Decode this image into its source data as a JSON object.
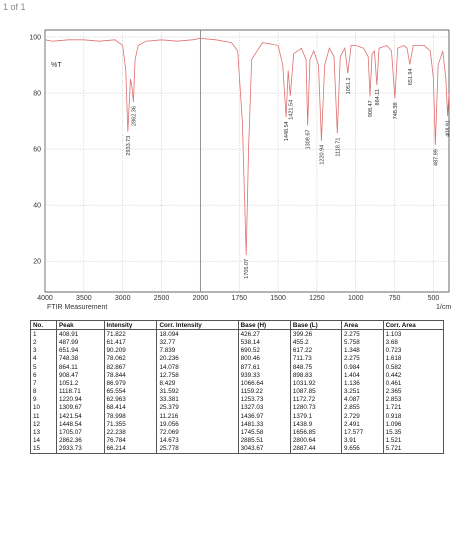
{
  "page": {
    "counter": "1 of 1"
  },
  "chart_data": {
    "type": "line",
    "y_label": "%T",
    "x_label": "1/cm",
    "caption": "FTIR Measurement",
    "color": "#e07070",
    "label_color": "#d03030",
    "grid": true,
    "scale_break": 2000,
    "xlim": [
      4000,
      400
    ],
    "ylim": [
      9,
      102.5
    ],
    "xticks": [
      4000,
      3500,
      3000,
      2500,
      2000,
      1750,
      1500,
      1250,
      1000,
      750,
      500
    ],
    "yticks": [
      20,
      40,
      60,
      80,
      100
    ],
    "x": [
      4000,
      3900,
      3700,
      3500,
      3300,
      3100,
      3000,
      2960,
      2933.73,
      2900,
      2880,
      2862.36,
      2840,
      2800,
      2700,
      2500,
      2300,
      2100,
      2000,
      1900,
      1800,
      1760,
      1730,
      1705.07,
      1690,
      1670,
      1600,
      1500,
      1470,
      1448.54,
      1435,
      1421.54,
      1400,
      1350,
      1320,
      1309.67,
      1295,
      1270,
      1240,
      1220.94,
      1200,
      1170,
      1140,
      1118.71,
      1100,
      1070,
      1051.2,
      1030,
      1000,
      950,
      920,
      908.47,
      895,
      880,
      864.11,
      850,
      800,
      770,
      748.38,
      730,
      690,
      670,
      651.94,
      630,
      560,
      520,
      500,
      487.99,
      470,
      440,
      420,
      408.91,
      400
    ],
    "values": [
      99,
      98.5,
      99,
      99,
      98.5,
      99,
      97,
      88,
      66.2,
      85,
      82,
      76.8,
      92,
      97,
      98.5,
      99,
      98.5,
      99,
      99.5,
      99,
      98,
      95,
      70,
      22.2,
      60,
      92,
      98,
      97,
      90,
      71.4,
      88,
      79,
      94,
      96,
      92,
      68.4,
      92,
      95,
      90,
      63,
      90,
      96,
      93,
      65.6,
      93,
      96,
      87,
      97,
      97,
      96,
      93,
      78.8,
      94,
      95,
      82.9,
      96,
      97,
      95,
      78.1,
      96,
      97,
      96,
      90.2,
      97,
      97,
      95,
      85,
      61.4,
      90,
      95,
      85,
      71.8,
      80
    ]
  },
  "table": {
    "columns": [
      "No.",
      "Peak",
      "Intensity",
      "Corr. Intensity",
      "Base (H)",
      "Base (L)",
      "Area",
      "Corr. Area"
    ],
    "rows": [
      [
        1,
        408.91,
        71.822,
        18.094,
        426.27,
        399.26,
        2.275,
        1.103
      ],
      [
        2,
        487.99,
        61.417,
        32.77,
        538.14,
        455.2,
        5.758,
        3.68
      ],
      [
        3,
        651.94,
        90.209,
        7.839,
        690.52,
        617.22,
        1.348,
        0.723
      ],
      [
        4,
        748.38,
        78.062,
        20.236,
        800.46,
        711.73,
        2.275,
        1.618
      ],
      [
        5,
        864.11,
        82.867,
        14.078,
        877.61,
        848.75,
        0.984,
        0.582
      ],
      [
        6,
        908.47,
        78.844,
        12.758,
        939.33,
        898.83,
        1.404,
        0.442
      ],
      [
        7,
        1051.2,
        86.979,
        8.429,
        1066.64,
        1031.92,
        1.136,
        0.461
      ],
      [
        8,
        1118.71,
        65.554,
        31.592,
        1159.22,
        1087.85,
        3.251,
        2.365
      ],
      [
        9,
        1220.94,
        62.963,
        33.381,
        1253.73,
        1172.72,
        4.087,
        2.853
      ],
      [
        10,
        1309.67,
        68.414,
        25.379,
        1327.03,
        1280.73,
        2.855,
        1.721
      ],
      [
        11,
        1421.54,
        78.998,
        11.216,
        1436.97,
        1379.1,
        2.729,
        0.918
      ],
      [
        12,
        1448.54,
        71.355,
        19.056,
        1481.33,
        1438.9,
        2.491,
        1.096
      ],
      [
        13,
        1705.07,
        22.238,
        72.069,
        1745.58,
        1656.85,
        17.577,
        15.35
      ],
      [
        14,
        2862.36,
        76.784,
        14.673,
        2885.51,
        2800.64,
        3.91,
        1.521
      ],
      [
        15,
        2933.73,
        66.214,
        25.778,
        3043.67,
        2887.44,
        9.656,
        5.721
      ]
    ]
  }
}
